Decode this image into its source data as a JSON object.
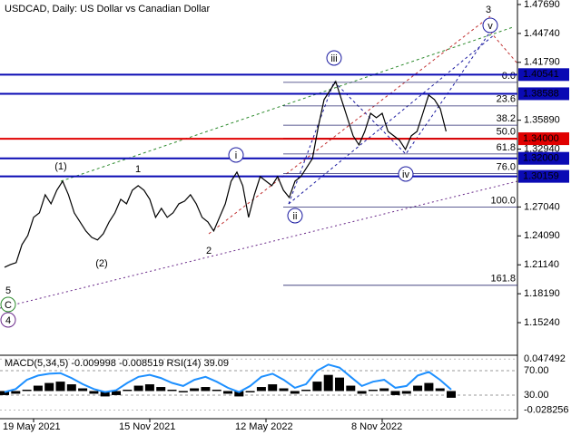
{
  "chart_data": [
    {
      "type": "line",
      "title": "USDCAD, Daily:  US Dollar vs Canadian Dollar",
      "categories": [
        null,
        null,
        null,
        null,
        null,
        "19 May 2021",
        null,
        null,
        null,
        null,
        null,
        null,
        null,
        null,
        null,
        null,
        null,
        null,
        null,
        null,
        null,
        null,
        null,
        null,
        null,
        "15 Nov 2021",
        null,
        null,
        null,
        null,
        null,
        null,
        null,
        null,
        null,
        null,
        null,
        null,
        null,
        null,
        null,
        null,
        null,
        null,
        null,
        "12 May 2022",
        null,
        null,
        null,
        null,
        null,
        null,
        null,
        null,
        null,
        null,
        null,
        null,
        null,
        null,
        null,
        null,
        null,
        null,
        null,
        "8 Nov 2022",
        null,
        null,
        null,
        null,
        null,
        null,
        null,
        null,
        null,
        null,
        null
      ],
      "values": [
        1.2089,
        1.2117,
        1.2136,
        1.232,
        1.2413,
        1.2598,
        1.2644,
        1.2829,
        1.2736,
        1.2875,
        1.2967,
        1.2829,
        1.2644,
        1.2551,
        1.2459,
        1.2394,
        1.2367,
        1.2431,
        1.2551,
        1.2644,
        1.2782,
        1.2736,
        1.2875,
        1.2921,
        1.2875,
        1.2782,
        1.2598,
        1.269,
        1.2598,
        1.2644,
        1.2736,
        1.2764,
        1.2829,
        1.2736,
        1.2598,
        1.2551,
        1.2459,
        1.2598,
        1.2736,
        1.2967,
        1.306,
        1.2921,
        1.2598,
        1.2829,
        1.3013,
        1.2967,
        1.2921,
        1.3013,
        1.2875,
        1.2801,
        1.2967,
        1.3013,
        1.3106,
        1.3198,
        1.3522,
        1.3799,
        1.3891,
        1.3984,
        1.3799,
        1.3614,
        1.3429,
        1.3337,
        1.3475,
        1.366,
        1.3614,
        1.366,
        1.3475,
        1.3429,
        1.3383,
        1.3291,
        1.3429,
        1.3475,
        1.366,
        1.3845,
        1.3799,
        1.3706,
        1.3475
      ],
      "color": "#000000",
      "ylim": [
        1.121,
        1.4815
      ],
      "yticks": [
        {
          "value": 1.4769,
          "label": "1.47690"
        },
        {
          "value": 1.4474,
          "label": "1.44740"
        },
        {
          "value": 1.4179,
          "label": "1.41790"
        },
        {
          "value": 1.3589,
          "label": "1.35890"
        },
        {
          "value": 1.3294,
          "label": "1.32940"
        },
        {
          "value": 1.2704,
          "label": "1.27040"
        },
        {
          "value": 1.2409,
          "label": "1.24090"
        },
        {
          "value": 1.2114,
          "label": "1.21140"
        },
        {
          "value": 1.1819,
          "label": "1.18190"
        },
        {
          "value": 1.1524,
          "label": "1.15240"
        }
      ],
      "levels": [
        {
          "value": 1.40541,
          "label": "1.40541",
          "color": "#0a0ab4"
        },
        {
          "value": 1.38588,
          "label": "1.38588",
          "color": "#0a0ab4"
        },
        {
          "value": 1.34,
          "label": "1.34000",
          "color": "#e00000"
        },
        {
          "value": 1.32,
          "label": "1.32000",
          "color": "#0a0ab4"
        },
        {
          "value": 1.30159,
          "label": "1.30159",
          "color": "#0a0ab4"
        }
      ],
      "fib_levels": [
        {
          "value": 1.3975,
          "label": "0.0"
        },
        {
          "value": 1.3735,
          "label": "23.6"
        },
        {
          "value": 1.3538,
          "label": "38.2"
        },
        {
          "value": 1.3405,
          "label": "50.0"
        },
        {
          "value": 1.3245,
          "label": "61.8"
        },
        {
          "value": 1.3045,
          "label": "76.0"
        },
        {
          "value": 1.2704,
          "label": "100.0"
        },
        {
          "value": 1.1905,
          "label": "161.8"
        }
      ],
      "annotations": [
        {
          "text": "3",
          "color": "#b03020"
        },
        {
          "text": "v",
          "color": "#1a1aa0",
          "circled": true
        },
        {
          "text": "iii",
          "color": "#1a1aa0",
          "circled": true
        },
        {
          "text": "i",
          "color": "#1a1aa0",
          "circled": true
        },
        {
          "text": "ii",
          "color": "#1a1aa0",
          "circled": true
        },
        {
          "text": "iv",
          "color": "#1a1aa0",
          "circled": true
        },
        {
          "text": "(1)",
          "color": "#2e8b2e"
        },
        {
          "text": "(2)",
          "color": "#2e8b2e"
        },
        {
          "text": "1",
          "color": "#a0302a"
        },
        {
          "text": "2",
          "color": "#a0302a"
        },
        {
          "text": "5",
          "color": "#a0302a"
        },
        {
          "text": "C",
          "color": "#2e8b2e",
          "circled": true
        },
        {
          "text": "4",
          "color": "#6a2a8a",
          "circled": true
        }
      ]
    },
    {
      "type": "bar",
      "title": "MACD(5,34,5) -0.009998 -0.008519 RSI(14) 39.09",
      "values": [
        -0.006,
        -0.004,
        0.002,
        0.008,
        0.012,
        0.014,
        0.01,
        0.004,
        -0.004,
        -0.008,
        -0.006,
        0.002,
        0.008,
        0.01,
        0.006,
        0.002,
        -0.002,
        0.004,
        0.006,
        0.002,
        -0.004,
        -0.008,
        -0.002,
        0.006,
        0.01,
        0.004,
        -0.004,
        0.002,
        0.014,
        0.024,
        0.02,
        0.008,
        -0.004,
        0.002,
        0.004,
        -0.006,
        -0.004,
        0.008,
        0.012,
        0.004,
        -0.009998
      ],
      "color": "#000000",
      "ylim": [
        -0.0411,
        0.0532
      ],
      "yticks": [
        0.047492,
        -0.028256
      ],
      "y2lim": [
        -8.5,
        95.2
      ],
      "y2ticks": [
        {
          "value": 70,
          "label": "70.00"
        },
        {
          "value": 30,
          "label": "30.00"
        }
      ],
      "series": [
        {
          "values": [
            35,
            40,
            55,
            62,
            65,
            66,
            58,
            48,
            40,
            35,
            38,
            50,
            60,
            63,
            58,
            50,
            45,
            55,
            60,
            52,
            42,
            35,
            45,
            60,
            65,
            55,
            42,
            48,
            70,
            80,
            75,
            60,
            45,
            52,
            55,
            42,
            45,
            62,
            68,
            55,
            39.09
          ],
          "color": "#1e90ff",
          "axis": "y2"
        }
      ]
    }
  ]
}
